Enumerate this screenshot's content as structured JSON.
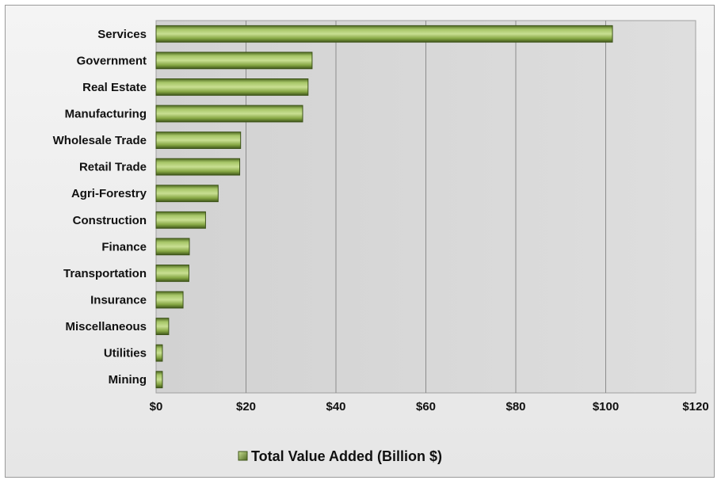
{
  "chart_data": {
    "type": "bar",
    "orientation": "horizontal",
    "categories": [
      "Services",
      "Government",
      "Real Estate",
      "Manufacturing",
      "Wholesale Trade",
      "Retail Trade",
      "Agri-Forestry",
      "Construction",
      "Finance",
      "Transportation",
      "Insurance",
      "Miscellaneous",
      "Utilities",
      "Mining"
    ],
    "series": [
      {
        "name": "Total Value Added (Billion $)",
        "values": [
          101.5,
          34.7,
          33.8,
          32.6,
          18.8,
          18.6,
          13.8,
          11.0,
          7.4,
          7.3,
          6.0,
          2.8,
          1.4,
          1.4
        ]
      }
    ],
    "xlabel": "",
    "ylabel": "",
    "xlim": [
      0,
      120
    ],
    "x_ticks": [
      0,
      20,
      40,
      60,
      80,
      100,
      120
    ],
    "x_tick_labels": [
      "$0",
      "$20",
      "$40",
      "$60",
      "$80",
      "$100",
      "$120"
    ],
    "grid": true,
    "legend_position": "bottom",
    "colors": {
      "bar_fill": "#7a9a3a",
      "bar_light": "#c4dc8a",
      "bar_dark": "#4a6420",
      "plot_background": "#d9d9d9",
      "gridline": "#8c8c8c"
    }
  }
}
